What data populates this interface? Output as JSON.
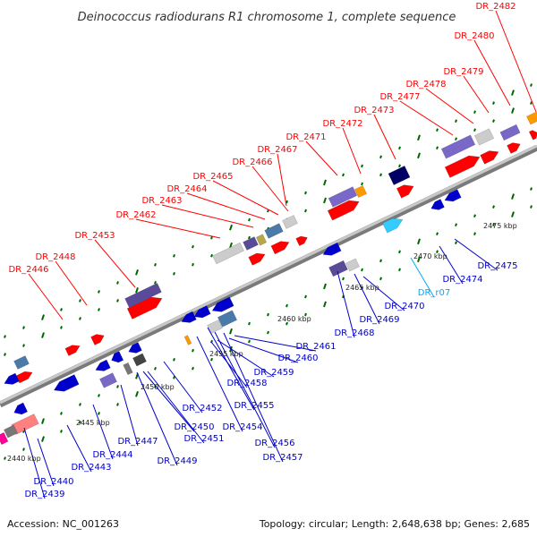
{
  "title": "Deinococcus radiodurans R1 chromosome 1, complete sequence",
  "footer": {
    "accession": "Accession: NC_001263",
    "summary": "Topology: circular; Length: 2,648,638 bp; Genes: 2,685"
  },
  "colors": {
    "forward_label": "#ff0000",
    "reverse_label": "#0000cc",
    "rna_label": "#00aaff",
    "backbone": "#888888",
    "tick": "#006600"
  },
  "tick_labels": [
    "2440 kbp",
    "2445 kbp",
    "2450 kbp",
    "2455 kbp",
    "2460 kbp",
    "2465 kbp",
    "2470 kbp",
    "2475 kbp"
  ],
  "forward_genes": [
    "DR_2446",
    "DR_2448",
    "DR_2453",
    "DR_2462",
    "DR_2463",
    "DR_2464",
    "DR_2465",
    "DR_2466",
    "DR_2467",
    "DR_2471",
    "DR_2472",
    "DR_2473",
    "DR_2477",
    "DR_2478",
    "DR_2479",
    "DR_2480",
    "DR_2482"
  ],
  "reverse_genes": [
    "DR_2439",
    "DR_2440",
    "DR_2443",
    "DR_2444",
    "DR_2447",
    "DR_2449",
    "DR_2450",
    "DR_2451",
    "DR_2452",
    "DR_2454",
    "DR_2455",
    "DR_2456",
    "DR_2457",
    "DR_2458",
    "DR_2459",
    "DR_2460",
    "DR_2461",
    "DR_2468",
    "DR_2469",
    "DR_2470",
    "DR_r07",
    "DR_2474",
    "DR_2475"
  ],
  "rna_genes": [
    "DR_r07"
  ]
}
